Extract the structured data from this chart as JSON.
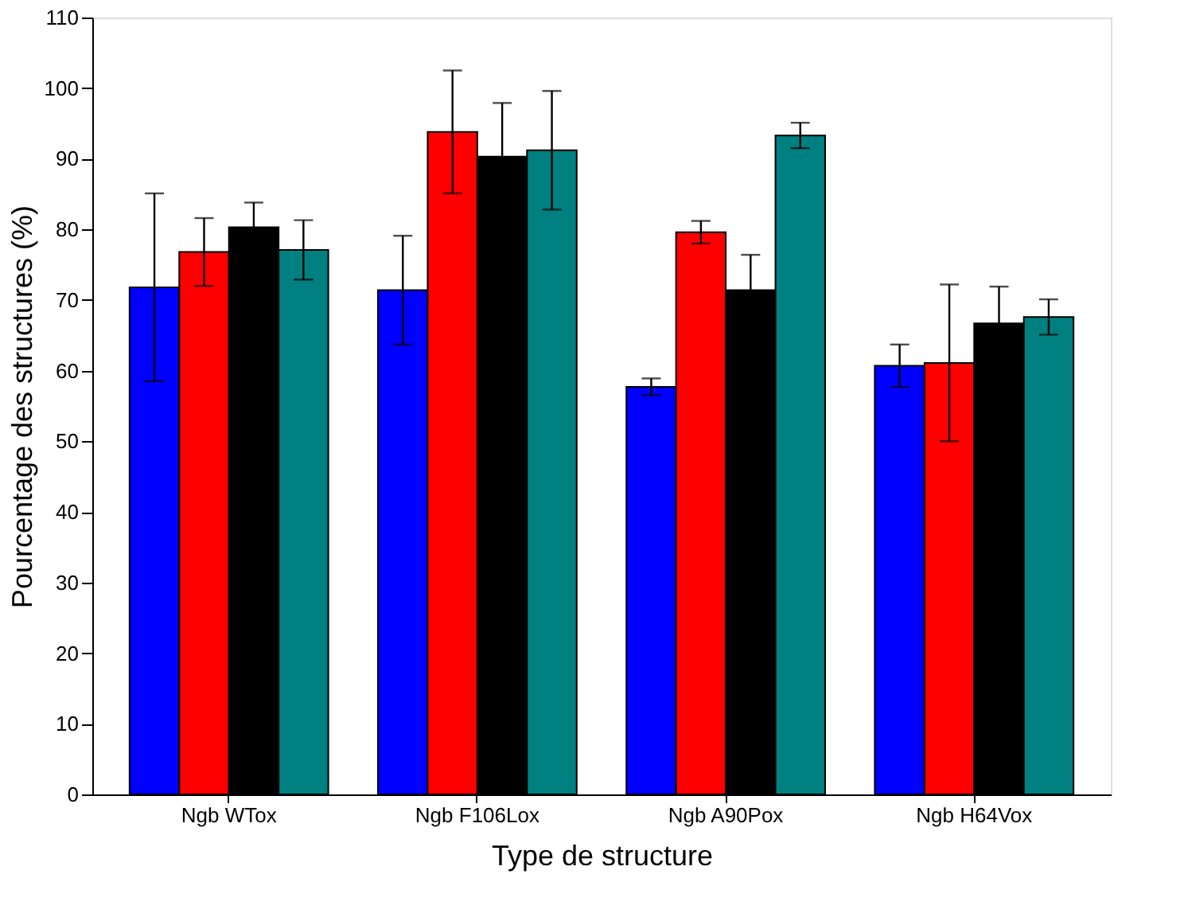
{
  "chart_data": {
    "type": "bar",
    "xlabel": "Type de structure",
    "ylabel": "Pourcentage des structures (%)",
    "categories": [
      "Ngb WTox",
      "Ngb F106Lox",
      "Ngb A90Pox",
      "Ngb H64Vox"
    ],
    "series": [
      {
        "color": "#0000ff",
        "values": [
          71.8,
          71.4,
          57.7,
          60.7
        ],
        "errors": [
          13.3,
          7.7,
          1.2,
          3.0
        ]
      },
      {
        "color": "#ff0000",
        "values": [
          76.8,
          93.8,
          79.6,
          61.1
        ],
        "errors": [
          4.8,
          8.7,
          1.6,
          11.1
        ]
      },
      {
        "color": "#000000",
        "values": [
          80.3,
          90.3,
          71.4,
          66.7
        ],
        "errors": [
          3.5,
          7.6,
          5.0,
          5.2
        ]
      },
      {
        "color": "#008080",
        "values": [
          77.1,
          91.2,
          93.3,
          67.6
        ],
        "errors": [
          4.2,
          8.4,
          1.8,
          2.5
        ]
      }
    ],
    "ylim": [
      0,
      110
    ],
    "yticks": [
      0,
      10,
      20,
      30,
      40,
      50,
      60,
      70,
      80,
      90,
      100,
      110
    ],
    "grid": false,
    "legend": false
  }
}
